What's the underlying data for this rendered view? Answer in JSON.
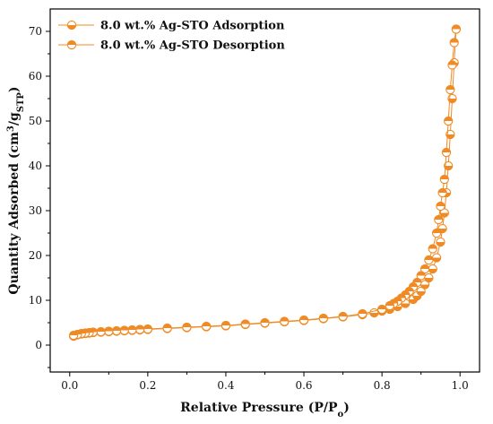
{
  "chart_data": {
    "type": "scatter",
    "title": "",
    "xlabel": {
      "main": "Relative Pressure (P/P",
      "sub": "o",
      "tail": ")"
    },
    "ylabel": {
      "main": "Quantity Adsorbed (cm",
      "sup": "3",
      "mid": "/g",
      "sub": "STP",
      "tail": ")"
    },
    "xlim": [
      -0.05,
      1.05
    ],
    "ylim": [
      -6,
      75
    ],
    "xticks": [
      "0.0",
      "0.2",
      "0.4",
      "0.6",
      "0.8",
      "1.0"
    ],
    "yticks": [
      "0",
      "10",
      "20",
      "30",
      "40",
      "50",
      "60",
      "70"
    ],
    "legend_position": "top-left",
    "colors": {
      "series": "#f08a24",
      "axis": "#000000"
    },
    "series": [
      {
        "name": "8.0 wt.% Ag-STO Adsorption",
        "marker": "circle-half-filled",
        "x": [
          0.01,
          0.02,
          0.03,
          0.04,
          0.05,
          0.06,
          0.08,
          0.1,
          0.12,
          0.14,
          0.16,
          0.18,
          0.2,
          0.25,
          0.3,
          0.35,
          0.4,
          0.45,
          0.5,
          0.55,
          0.6,
          0.65,
          0.7,
          0.75,
          0.78,
          0.8,
          0.82,
          0.84,
          0.86,
          0.88,
          0.89,
          0.9,
          0.91,
          0.92,
          0.93,
          0.94,
          0.95,
          0.955,
          0.96,
          0.965,
          0.97,
          0.975,
          0.98,
          0.985,
          0.99
        ],
        "y": [
          2.0,
          2.3,
          2.5,
          2.6,
          2.7,
          2.8,
          2.9,
          3.0,
          3.1,
          3.2,
          3.3,
          3.4,
          3.5,
          3.7,
          3.9,
          4.1,
          4.3,
          4.6,
          4.9,
          5.2,
          5.5,
          5.9,
          6.3,
          6.8,
          7.2,
          7.6,
          8.0,
          8.6,
          9.3,
          10.2,
          11.0,
          12.0,
          13.5,
          15.0,
          17.0,
          19.5,
          23.0,
          26.0,
          29.5,
          34.0,
          40.0,
          47.0,
          55.0,
          63.0,
          70.5
        ]
      },
      {
        "name": "8.0 wt.% Ag-STO Desorption",
        "marker": "circle-half-filled",
        "x": [
          0.99,
          0.985,
          0.98,
          0.975,
          0.97,
          0.965,
          0.96,
          0.955,
          0.95,
          0.945,
          0.94,
          0.93,
          0.92,
          0.91,
          0.9,
          0.89,
          0.88,
          0.87,
          0.86,
          0.85,
          0.84,
          0.83,
          0.82,
          0.8,
          0.75,
          0.7,
          0.65,
          0.6,
          0.55,
          0.5,
          0.45,
          0.4,
          0.35,
          0.3,
          0.25,
          0.2,
          0.18,
          0.16,
          0.14,
          0.12,
          0.1,
          0.08,
          0.06,
          0.05,
          0.04,
          0.03,
          0.02,
          0.01
        ],
        "y": [
          70.5,
          67.5,
          62.5,
          57.0,
          50.0,
          43.0,
          37.0,
          34.0,
          31.0,
          28.0,
          25.0,
          21.5,
          19.0,
          17.0,
          15.5,
          14.0,
          13.0,
          12.0,
          11.2,
          10.5,
          9.8,
          9.3,
          8.8,
          8.0,
          7.0,
          6.4,
          6.0,
          5.6,
          5.3,
          5.0,
          4.7,
          4.4,
          4.2,
          4.0,
          3.8,
          3.6,
          3.5,
          3.4,
          3.3,
          3.2,
          3.1,
          3.0,
          2.9,
          2.8,
          2.7,
          2.6,
          2.4,
          2.2
        ]
      }
    ]
  }
}
